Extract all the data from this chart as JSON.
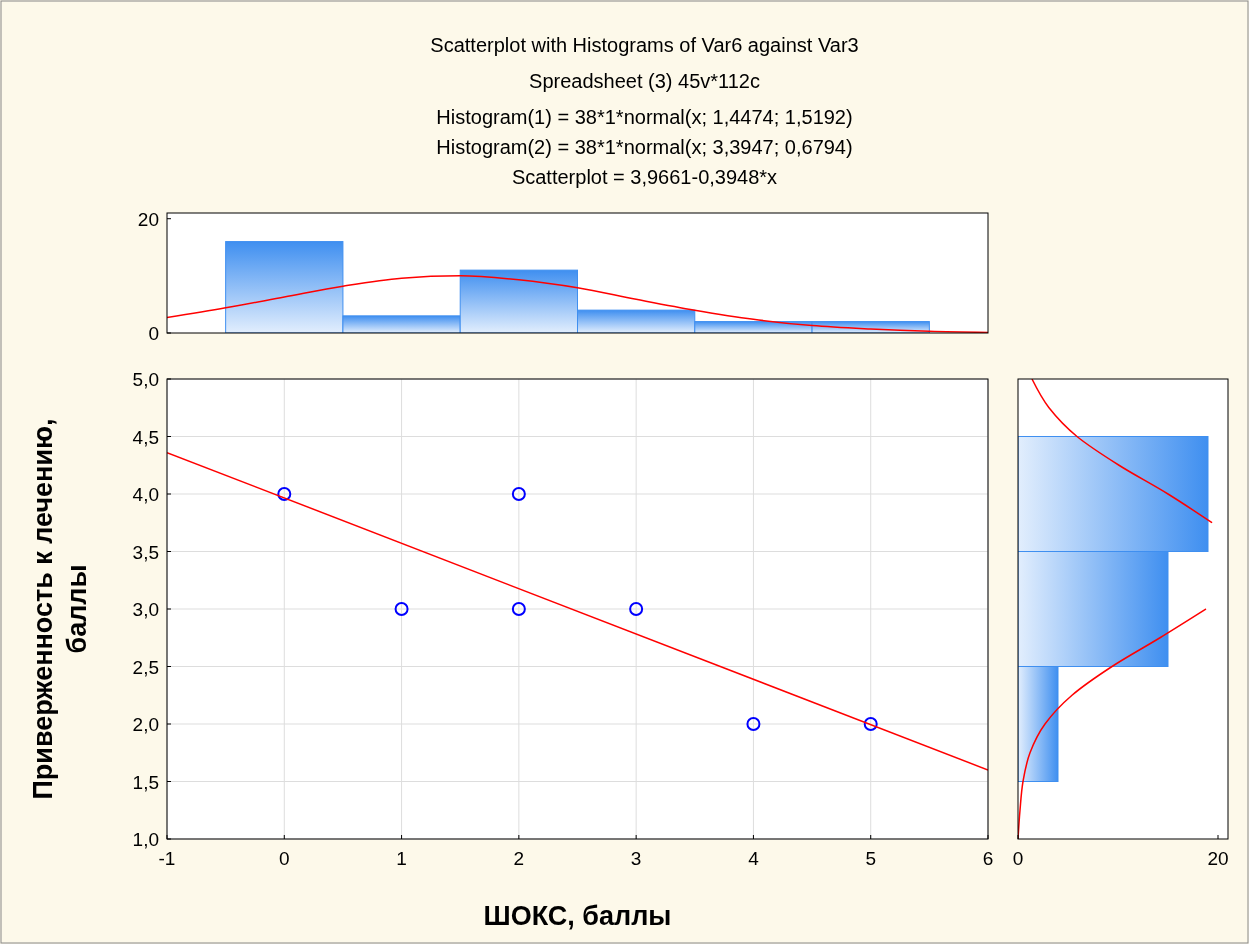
{
  "chart_data": [
    {
      "type": "histogram",
      "title": "Scatterplot with Histograms of Var6 against Var3",
      "subtitle": "Spreadsheet (3) 45v*112c",
      "annotations": [
        "Histogram(1) = 38*1*normal(x; 1,4474; 1,5192)",
        "Histogram(2) = 38*1*normal(x; 3,3947; 0,6794)",
        "Scatterplot = 3,9661-0,3948*x"
      ],
      "bins": [
        -0.5,
        0.5,
        1.5,
        2.5,
        3.5,
        4.5,
        5.5
      ],
      "values": [
        16,
        3,
        11,
        4,
        2,
        2
      ],
      "color": "#3f8ff0",
      "series": [
        {
          "type": "line",
          "color": "#ff0000",
          "x": [
            -1,
            -0.5,
            0,
            0.5,
            1,
            1.5,
            2,
            2.5,
            3,
            3.5,
            4,
            4.5,
            5,
            5.5,
            6
          ],
          "values": [
            2.7,
            4.4,
            6.3,
            8.2,
            9.6,
            10.0,
            9.3,
            7.9,
            5.9,
            4.0,
            2.4,
            1.3,
            0.7,
            0.3,
            0.1
          ]
        }
      ],
      "xlim": [
        -1,
        6
      ],
      "ylim": [
        0,
        21
      ],
      "yticks": [
        0,
        20
      ],
      "tick_labels": "y",
      "grid": false
    },
    {
      "type": "scatter",
      "xlabel": "ШОКС, баллы",
      "ylabel": "Приверженность к лечению, баллы",
      "series": [
        {
          "x": [
            0,
            1,
            2,
            2,
            3,
            4,
            5
          ],
          "values": [
            4,
            3,
            4,
            3,
            3,
            2,
            2
          ],
          "color": "#0000ff",
          "marker": "circle"
        },
        {
          "type": "line",
          "color": "#ff0000",
          "x": [
            -1,
            6
          ],
          "values": [
            4.36,
            1.6
          ]
        }
      ],
      "xlim": [
        -1,
        6
      ],
      "ylim": [
        1,
        5
      ],
      "xticks": [
        -1,
        0,
        1,
        2,
        3,
        4,
        5,
        6
      ],
      "yticks": [
        {
          "value": 1,
          "label": "1,0"
        },
        {
          "value": 1.5,
          "label": "1,5"
        },
        {
          "value": 2,
          "label": "2,0"
        },
        {
          "value": 2.5,
          "label": "2,5"
        },
        {
          "value": 3,
          "label": "3,0"
        },
        {
          "value": 3.5,
          "label": "3,5"
        },
        {
          "value": 4,
          "label": "4,0"
        },
        {
          "value": 4.5,
          "label": "4,5"
        },
        {
          "value": 5,
          "label": "5,0"
        }
      ],
      "grid": true
    },
    {
      "type": "histogram",
      "orientation": "horizontal",
      "bins": [
        1.5,
        2.5,
        3.5,
        4.5
      ],
      "values": [
        4,
        15,
        19
      ],
      "color": "#3f8ff0",
      "series": [
        {
          "type": "line",
          "color": "#ff0000",
          "x": [
            1,
            1.25,
            1.5,
            1.75,
            2,
            2.25,
            2.5,
            2.75,
            3,
            3.25,
            3.5,
            3.75,
            4,
            4.25,
            4.5,
            4.75,
            5
          ],
          "values": [
            0.0,
            0.2,
            0.5,
            1.2,
            2.7,
            5.4,
            9.4,
            14.2,
            18.8,
            null,
            null,
            19.4,
            15.0,
            10.1,
            5.9,
            3.1,
            1.4
          ]
        }
      ],
      "xlim": [
        0,
        21
      ],
      "ylim": [
        1,
        5
      ],
      "xticks": [
        0,
        20
      ],
      "tick_labels": "x",
      "grid": false
    }
  ]
}
